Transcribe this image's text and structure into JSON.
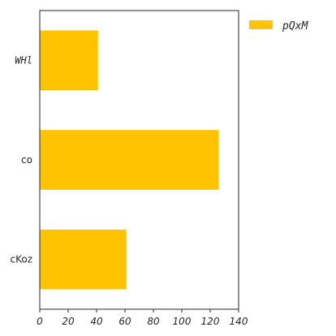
{
  "chart_data": {
    "type": "bar",
    "orientation": "horizontal",
    "categories": [
      "WHl",
      "co",
      "cKoz"
    ],
    "series": [
      {
        "name": "pQxM",
        "values": [
          41,
          126,
          61
        ],
        "color": "#FFC300"
      }
    ],
    "xlim": [
      0,
      140
    ],
    "xticks": [
      "0",
      "20",
      "40",
      "60",
      "80",
      "100",
      "120",
      "140"
    ],
    "grid": false,
    "legend_position": "top-right-outside"
  }
}
